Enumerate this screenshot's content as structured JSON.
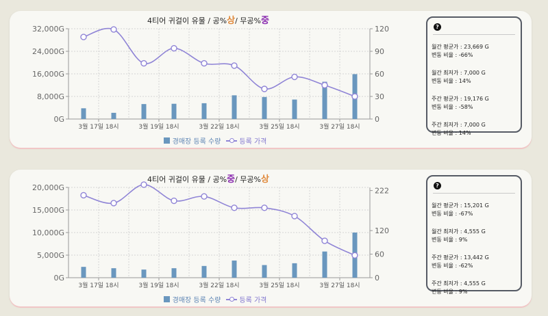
{
  "colors": {
    "bar": "#6a97be",
    "line": "#8f84d6",
    "sang": "#e0893b",
    "jung": "#8b2db0"
  },
  "panels": [
    {
      "title": {
        "prefix": "4티어 귀걸이 유물 / 공%",
        "grade1": "상",
        "mid": "/ 무공%",
        "grade2": "중",
        "grade1_color": "#e0893b",
        "grade2_color": "#8b2db0"
      },
      "stats": [
        {
          "label": "월간 평균가 : 23,669 G",
          "change": "변동 비율 : -66%"
        },
        {
          "label": "월간 최저가 : 7,000 G",
          "change": "변동 비율 : 14%"
        },
        {
          "label": "주간 평균가 : 19,176 G",
          "change": "변동 비율 : -58%"
        },
        {
          "label": "주간 최저가 : 7,000 G",
          "change": "변동 비율 : 14%"
        }
      ],
      "legend": {
        "bar": "경매장 등록 수량",
        "line": "등록 가격"
      }
    },
    {
      "title": {
        "prefix": "4티어 귀걸이 유물 / 공%",
        "grade1": "중",
        "mid": "/ 무공%",
        "grade2": "상",
        "grade1_color": "#8b2db0",
        "grade2_color": "#e0893b"
      },
      "stats": [
        {
          "label": "월간 평균가 : 15,201 G",
          "change": "변동 비율 : -67%"
        },
        {
          "label": "월간 최저가 : 4,555 G",
          "change": "변동 비율 : 9%"
        },
        {
          "label": "주간 평균가 : 13,442 G",
          "change": "변동 비율 : -62%"
        },
        {
          "label": "주간 최저가 : 4,555 G",
          "change": "변동 비율 : 9%"
        }
      ],
      "legend": {
        "bar": "경매장 등록 수량",
        "line": "등록 가격"
      }
    }
  ],
  "chart_data": [
    {
      "type": "bar",
      "title": "4티어 귀걸이 유물 / 공%상/ 무공%중",
      "x_tick_labels": [
        "3월 17일 18시",
        "3월 19일 18시",
        "3월 22일 18시",
        "3월 25일 18시",
        "3월 27일 18시"
      ],
      "left_axis": {
        "ticks": [
          "0G",
          "8,000G",
          "16,000G",
          "24,000G",
          "32,000G"
        ],
        "range": [
          0,
          32000
        ]
      },
      "right_axis": {
        "ticks": [
          "0",
          "30",
          "60",
          "90",
          "120"
        ],
        "range": [
          0,
          120
        ]
      },
      "grid": true,
      "series": [
        {
          "name": "경매장 등록 수량",
          "type": "bar",
          "axis": "left",
          "values": [
            3800,
            2200,
            5300,
            5400,
            5600,
            8400,
            7800,
            6900,
            13200,
            15900
          ]
        },
        {
          "name": "등록 가격",
          "type": "line",
          "axis": "right",
          "values": [
            109,
            119,
            74,
            94,
            74,
            71,
            40,
            56,
            45,
            30
          ]
        }
      ]
    },
    {
      "type": "bar",
      "title": "4티어 귀걸이 유물 / 공%중/ 무공%상",
      "x_tick_labels": [
        "3월 17일 18시",
        "3월 19일 18시",
        "3월 22일 18시",
        "3월 25일 18시",
        "3월 27일 18시"
      ],
      "left_axis": {
        "ticks": [
          "0G",
          "5,000G",
          "10,000G",
          "15,000G",
          "20,000G"
        ],
        "range": [
          0,
          20000
        ]
      },
      "right_axis": {
        "ticks": [
          "0",
          "60",
          "120",
          "222"
        ],
        "range": [
          0,
          230
        ]
      },
      "grid": true,
      "series": [
        {
          "name": "경매장 등록 수량",
          "type": "bar",
          "axis": "left",
          "values": [
            2400,
            2100,
            1800,
            2100,
            2600,
            3800,
            2800,
            3200,
            5800,
            10000
          ]
        },
        {
          "name": "등록 가격",
          "type": "line",
          "axis": "right",
          "values": [
            210,
            190,
            237,
            196,
            207,
            178,
            178,
            157,
            94,
            57
          ]
        }
      ]
    }
  ]
}
